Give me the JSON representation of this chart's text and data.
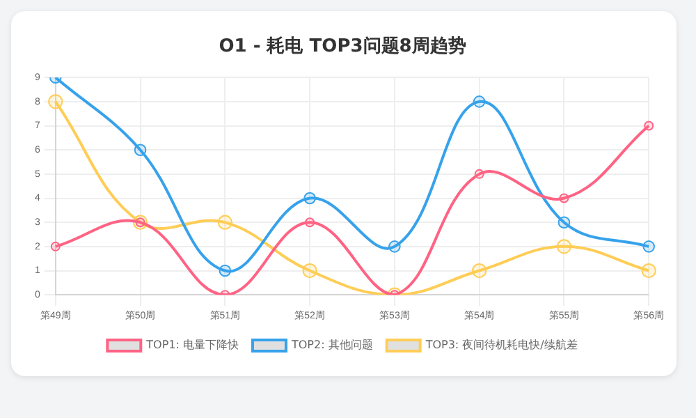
{
  "chart_data": {
    "type": "line",
    "title": "O1 - 耗电 TOP3问题8周趋势",
    "categories": [
      "第49周",
      "第50周",
      "第51周",
      "第52周",
      "第53周",
      "第54周",
      "第55周",
      "第56周"
    ],
    "series": [
      {
        "name": "TOP1: 电量下降快",
        "color": "#ff6384",
        "values": [
          2,
          3,
          0,
          3,
          0,
          5,
          4,
          7
        ]
      },
      {
        "name": "TOP2: 其他问题",
        "color": "#36a2eb",
        "values": [
          9,
          6,
          1,
          4,
          2,
          8,
          3,
          2
        ]
      },
      {
        "name": "TOP3: 夜间待机耗电快/续航差",
        "color": "#ffcd56",
        "values": [
          8,
          3,
          3,
          1,
          0,
          1,
          2,
          1
        ]
      }
    ],
    "ylim": [
      0,
      9
    ],
    "yticks": [
      0,
      1,
      2,
      3,
      4,
      5,
      6,
      7,
      8,
      9
    ],
    "grid": true,
    "legend": "bottom",
    "marker": "circle",
    "line_style": "solid"
  }
}
